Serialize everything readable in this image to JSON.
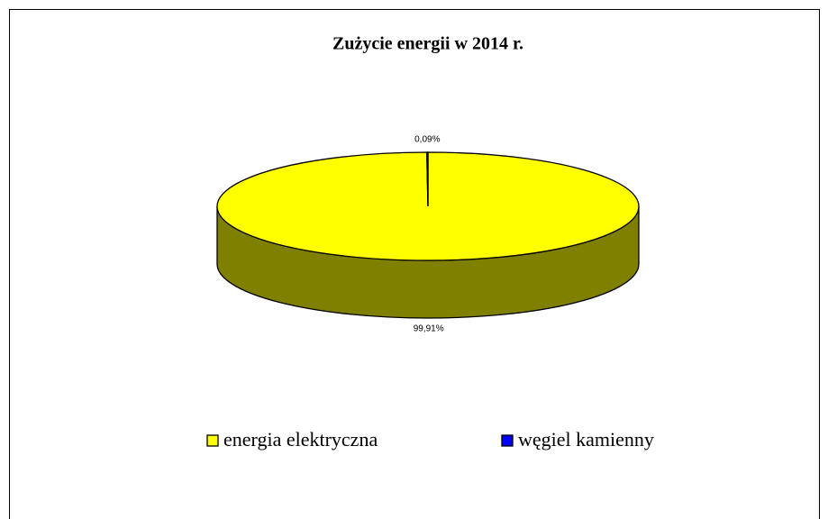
{
  "chart_data": {
    "type": "pie",
    "title": "Zużycie energii w 2014 r.",
    "categories": [
      "energia elektryczna",
      "węgiel kamienny"
    ],
    "values": [
      99.91,
      0.09
    ],
    "value_labels": [
      "99,91%",
      "0,09%"
    ],
    "colors": [
      "#ffff00",
      "#0000ff"
    ],
    "legend": "bottom"
  }
}
